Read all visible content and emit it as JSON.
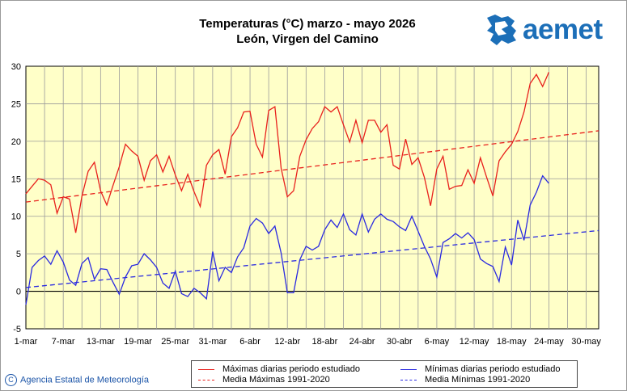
{
  "header": {
    "title_line1": "Temperaturas (°C) marzo  - mayo 2026",
    "title_line2": "León, Virgen del Camino"
  },
  "logo": {
    "text": "aemet",
    "icon": "aemet-logo-icon",
    "color": "#1c6fb8"
  },
  "footer": {
    "copyright_symbol": "C",
    "agency": "Agencia Estatal de Meteorología"
  },
  "colors": {
    "max": "#e8201c",
    "min": "#2a2ae0",
    "plot_bg": "#ffffc8",
    "grid": "#9a9a9a",
    "zero_line": "#000000"
  },
  "chart_data": {
    "type": "line",
    "ylim": [
      -5,
      30
    ],
    "yticks": [
      -5,
      0,
      5,
      10,
      15,
      20,
      25,
      30
    ],
    "x_labels": [
      "1-mar",
      "7-mar",
      "13-mar",
      "19-mar",
      "25-mar",
      "31-mar",
      "6-abr",
      "12-abr",
      "18-abr",
      "24-abr",
      "30-abr",
      "6-may",
      "12-may",
      "18-may",
      "24-may",
      "30-may"
    ],
    "x_days": 92,
    "legend_position": "bottom",
    "grid": true,
    "series": [
      {
        "name": "Máximas diarias periodo estudiado",
        "style": "solid",
        "color": "#e8201c",
        "values": [
          13,
          14,
          15,
          14.8,
          14.2,
          10.4,
          12.6,
          12.3,
          7.8,
          12.7,
          16,
          17.2,
          13.4,
          11.5,
          14.1,
          16.6,
          19.6,
          18.7,
          18,
          14.8,
          17.4,
          18.2,
          15.9,
          18,
          15.5,
          13.4,
          15.6,
          13.3,
          11.3,
          16.8,
          18.2,
          18.9,
          15.6,
          20.6,
          21.8,
          23.9,
          24,
          19.6,
          17.9,
          24.1,
          24.6,
          16.4,
          12.6,
          13.4,
          18,
          20.2,
          21.7,
          22.6,
          24.6,
          23.9,
          24.6,
          22.2,
          19.9,
          22.8,
          19.8,
          22.8,
          22.8,
          21.2,
          22.2,
          16.8,
          16.3,
          20.3,
          16.9,
          17.8,
          15.2,
          11.4,
          16.3,
          18,
          13.6,
          14,
          14.1,
          16.2,
          14.4,
          17.8,
          15.2,
          12.7,
          17.4,
          18.6,
          19.6,
          21.3,
          23.9,
          27.7,
          28.9,
          27.3,
          29.2
        ]
      },
      {
        "name": "Media Máximas 1991-2020",
        "style": "dashed",
        "color": "#e8201c",
        "values": [
          11.9,
          21.4
        ]
      },
      {
        "name": "Mínimas diarias periodo estudiado",
        "style": "solid",
        "color": "#2a2ae0",
        "values": [
          -1.8,
          3.2,
          4.1,
          4.7,
          3.6,
          5.4,
          3.9,
          1.5,
          0.8,
          3.7,
          4.5,
          1.6,
          3,
          2.9,
          1.2,
          -0.4,
          1.9,
          3.4,
          3.6,
          5,
          4.2,
          3.2,
          1.1,
          0.4,
          2.7,
          -0.3,
          -0.7,
          0.4,
          -0.2,
          -1,
          5.3,
          1.4,
          3.2,
          2.5,
          4.6,
          5.8,
          8.7,
          9.7,
          9.1,
          7.7,
          8.7,
          5.1,
          -0.2,
          -0.2,
          4.2,
          6,
          5.5,
          6,
          8.2,
          9.5,
          8.5,
          10.3,
          8.2,
          7.5,
          10.3,
          7.9,
          9.6,
          10.3,
          9.6,
          9.3,
          8.6,
          8.1,
          10,
          8,
          6,
          4.3,
          1.9,
          6.5,
          7,
          7.7,
          7.1,
          7.8,
          6.9,
          4.3,
          3.7,
          3.3,
          1.3,
          5.9,
          3.5,
          9.5,
          6.8,
          11.5,
          13.2,
          15.4,
          14.4
        ]
      },
      {
        "name": "Media Mínimas 1991-2020",
        "style": "dashed",
        "color": "#2a2ae0",
        "values": [
          0.5,
          8.1
        ]
      }
    ]
  }
}
